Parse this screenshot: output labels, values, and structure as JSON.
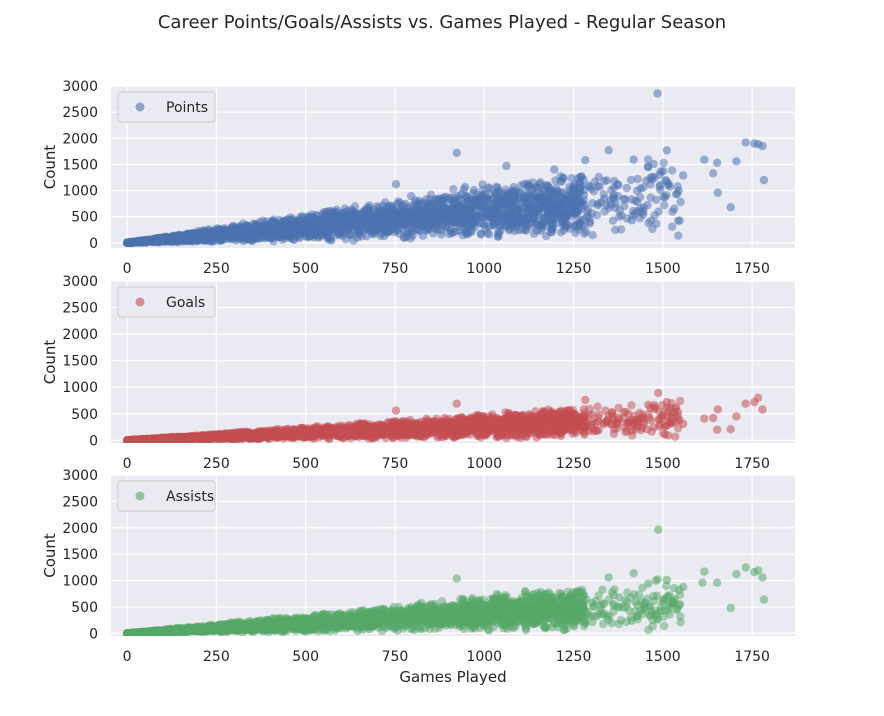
{
  "chart_data": {
    "type": "scatter",
    "title": "Career Points/Goals/Assists vs. Games Played - Regular Season",
    "xlabel": "Games Played",
    "x_ticks": [
      0,
      250,
      500,
      750,
      1000,
      1250,
      1500,
      1750
    ],
    "y_ticks": [
      0,
      500,
      1000,
      1500,
      2000,
      2500,
      3000
    ],
    "xlim": [
      -45,
      1870
    ],
    "grid": true,
    "legend_position": "upper-left",
    "panels": [
      {
        "ylabel": "Count",
        "ylim": [
          -100,
          3000
        ],
        "series": {
          "name": "Points",
          "color": "#4c72b0",
          "trend": {
            "slope": 0.6,
            "scale_noise": 0.45,
            "max_games": 1780
          },
          "notable_points": [
            {
              "x": 1485,
              "y": 2857
            },
            {
              "x": 1767,
              "y": 1887
            },
            {
              "x": 1732,
              "y": 1920
            },
            {
              "x": 1756,
              "y": 1900
            },
            {
              "x": 1779,
              "y": 1850
            },
            {
              "x": 1783,
              "y": 1200
            },
            {
              "x": 1706,
              "y": 1560
            },
            {
              "x": 1690,
              "y": 680
            },
            {
              "x": 1652,
              "y": 1530
            },
            {
              "x": 1641,
              "y": 1330
            },
            {
              "x": 1616,
              "y": 1590
            },
            {
              "x": 1654,
              "y": 960
            },
            {
              "x": 1557,
              "y": 1290
            },
            {
              "x": 1511,
              "y": 1770
            },
            {
              "x": 1501,
              "y": 1370
            },
            {
              "x": 1459,
              "y": 1450
            },
            {
              "x": 1418,
              "y": 1590
            },
            {
              "x": 1413,
              "y": 430
            },
            {
              "x": 1445,
              "y": 540
            },
            {
              "x": 1348,
              "y": 1770
            },
            {
              "x": 1283,
              "y": 1580
            },
            {
              "x": 1285,
              "y": 210
            },
            {
              "x": 923,
              "y": 1720
            },
            {
              "x": 753,
              "y": 1120
            },
            {
              "x": 1062,
              "y": 1470
            },
            {
              "x": 1196,
              "y": 1400
            }
          ]
        }
      },
      {
        "ylabel": "Count",
        "ylim": [
          -50,
          3000
        ],
        "series": {
          "name": "Goals",
          "color": "#c44e52",
          "trend": {
            "slope": 0.27,
            "scale_noise": 0.45,
            "max_games": 1780
          },
          "notable_points": [
            {
              "x": 1487,
              "y": 894
            },
            {
              "x": 1767,
              "y": 801
            },
            {
              "x": 1756,
              "y": 720
            },
            {
              "x": 1779,
              "y": 580
            },
            {
              "x": 1732,
              "y": 690
            },
            {
              "x": 1706,
              "y": 450
            },
            {
              "x": 1690,
              "y": 210
            },
            {
              "x": 1652,
              "y": 200
            },
            {
              "x": 1641,
              "y": 420
            },
            {
              "x": 1616,
              "y": 410
            },
            {
              "x": 1654,
              "y": 580
            },
            {
              "x": 1557,
              "y": 310
            },
            {
              "x": 1511,
              "y": 720
            },
            {
              "x": 1501,
              "y": 500
            },
            {
              "x": 1459,
              "y": 670
            },
            {
              "x": 1418,
              "y": 320
            },
            {
              "x": 1413,
              "y": 180
            },
            {
              "x": 1348,
              "y": 460
            },
            {
              "x": 1283,
              "y": 760
            },
            {
              "x": 923,
              "y": 690
            },
            {
              "x": 753,
              "y": 560
            }
          ]
        }
      },
      {
        "ylabel": "Count",
        "ylim": [
          -50,
          3000
        ],
        "series": {
          "name": "Assists",
          "color": "#55a868",
          "trend": {
            "slope": 0.38,
            "scale_noise": 0.45,
            "max_games": 1780
          },
          "notable_points": [
            {
              "x": 1487,
              "y": 1963
            },
            {
              "x": 1732,
              "y": 1250
            },
            {
              "x": 1767,
              "y": 1193
            },
            {
              "x": 1756,
              "y": 1160
            },
            {
              "x": 1779,
              "y": 1060
            },
            {
              "x": 1783,
              "y": 640
            },
            {
              "x": 1706,
              "y": 1120
            },
            {
              "x": 1690,
              "y": 480
            },
            {
              "x": 1652,
              "y": 960
            },
            {
              "x": 1616,
              "y": 1170
            },
            {
              "x": 1611,
              "y": 960
            },
            {
              "x": 1557,
              "y": 880
            },
            {
              "x": 1511,
              "y": 1010
            },
            {
              "x": 1459,
              "y": 940
            },
            {
              "x": 1418,
              "y": 1140
            },
            {
              "x": 1413,
              "y": 240
            },
            {
              "x": 1283,
              "y": 190
            },
            {
              "x": 923,
              "y": 1040
            },
            {
              "x": 1348,
              "y": 1060
            }
          ]
        }
      }
    ]
  }
}
